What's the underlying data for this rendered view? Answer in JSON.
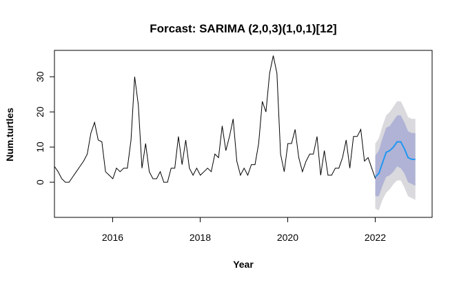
{
  "chart_data": {
    "type": "line",
    "title": "Forcast: SARIMA (2,0,3)(1,0,1)[12]",
    "xlabel": "Year",
    "ylabel": "Num.turtles",
    "xlim": [
      2014.67,
      2023.3
    ],
    "ylim": [
      -10,
      37.5
    ],
    "x_ticks": [
      2016,
      2018,
      2020,
      2022
    ],
    "x_tick_labels": [
      "2016",
      "2018",
      "2020",
      "2022"
    ],
    "y_ticks": [
      0,
      10,
      20,
      30
    ],
    "y_tick_labels": [
      "0",
      "10",
      "20",
      "30"
    ],
    "grid": false,
    "legend": "none",
    "colors": {
      "history": "#000000",
      "forecast": "#2196f3",
      "band_80": "#b0b3d5",
      "band_95": "#d9d9de"
    },
    "series": [
      {
        "role": "history",
        "x_start": 2014.67,
        "x_step": 0.0833333,
        "values": [
          4.5,
          3,
          1,
          0,
          0,
          1.5,
          3,
          4.5,
          6,
          8,
          14,
          17,
          12,
          11.5,
          3,
          2,
          1,
          4,
          3,
          4,
          4,
          12,
          30,
          22,
          4,
          11,
          3,
          1,
          1,
          3,
          0,
          0,
          4,
          4,
          13,
          5,
          12,
          4,
          2,
          4,
          2,
          3,
          4,
          3,
          8,
          7,
          16,
          9,
          13,
          18,
          6,
          2,
          4,
          2,
          5,
          5,
          11,
          23,
          20,
          31,
          36,
          31,
          8,
          3,
          11,
          11,
          15,
          7,
          3,
          6,
          8,
          8,
          13,
          2,
          9,
          2,
          2,
          4,
          4,
          7,
          12,
          4,
          13,
          13,
          15,
          6,
          7,
          4,
          1
        ]
      },
      {
        "role": "forecast",
        "x_start": 2022.0,
        "x_step": 0.0833333,
        "values": [
          1.5,
          2.5,
          5.5,
          8.5,
          9,
          10,
          11.5,
          11.5,
          9.5,
          7,
          6.5,
          6.5
        ],
        "lo80": [
          -4,
          -4,
          -1,
          1.5,
          2,
          3,
          4.5,
          4,
          2.5,
          0,
          -0.5,
          -1
        ],
        "hi80": [
          7.5,
          9,
          12.5,
          15.5,
          16,
          17.5,
          19,
          19,
          17,
          14.5,
          14,
          14
        ],
        "lo95": [
          -7.5,
          -8,
          -5,
          -3,
          -2,
          -0.5,
          0.5,
          0.5,
          -1.5,
          -4,
          -4.5,
          -5
        ],
        "hi95": [
          11,
          12.5,
          16,
          19,
          20,
          21.5,
          23,
          23,
          21,
          18.5,
          18,
          18
        ]
      }
    ]
  }
}
